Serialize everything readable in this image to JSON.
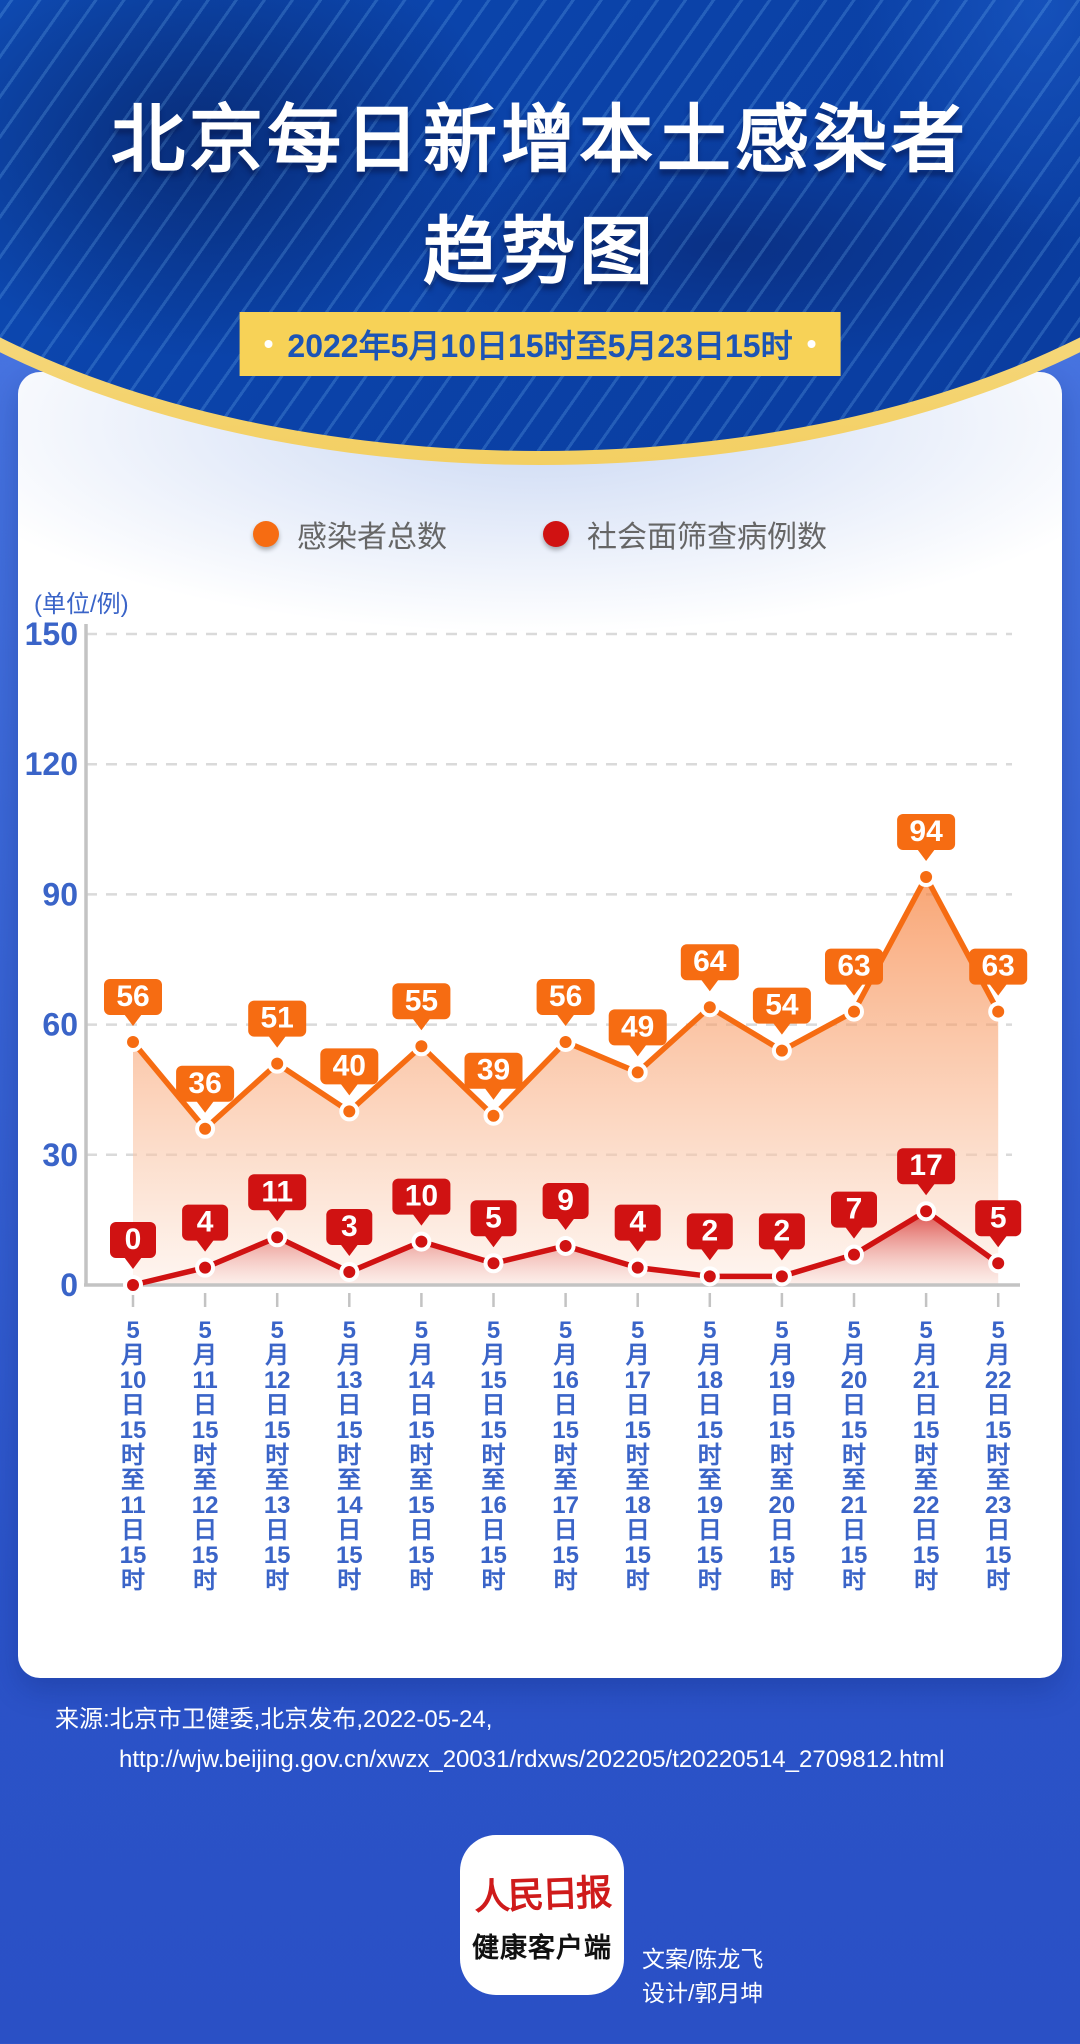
{
  "page": {
    "bg_top": "#4f7ce6",
    "bg_bottom": "#2a50c5",
    "header_blue": "#0b44ab",
    "rim_yellow": "#f3cf62"
  },
  "header": {
    "title_line1": "北京每日新增本土感染者",
    "title_line2": "趋势图",
    "badge": {
      "dot": "•",
      "text": "2022年5月10日15时至5月23日15时",
      "bg": "#f7d257",
      "text_color": "#1c54b6"
    }
  },
  "chart_data": {
    "type": "line",
    "title": "北京每日新增本土感染者趋势图",
    "unit_label": "(单位/例)",
    "categories": [
      "5月10日15时至11日15时",
      "5月11日15时至12日15时",
      "5月12日15时至13日15时",
      "5月13日15时至14日15时",
      "5月14日15时至15日15时",
      "5月15日15时至16日15时",
      "5月16日15时至17日15时",
      "5月17日15时至18日15时",
      "5月18日15时至19日15时",
      "5月19日15时至20日15时",
      "5月20日15时至21日15时",
      "5月21日15时至22日15时",
      "5月22日15时至23日15时"
    ],
    "series": [
      {
        "name": "感染者总数",
        "color": "#f66c12",
        "values": [
          56,
          36,
          51,
          40,
          55,
          39,
          56,
          49,
          64,
          54,
          63,
          94,
          63
        ]
      },
      {
        "name": "社会面筛查病例数",
        "color": "#d01212",
        "values": [
          0,
          4,
          11,
          3,
          10,
          5,
          9,
          4,
          2,
          2,
          7,
          17,
          5
        ]
      }
    ],
    "ylim": [
      0,
      150
    ],
    "yticks": [
      0,
      30,
      60,
      90,
      120,
      150
    ],
    "grid": true,
    "legend_position": "top",
    "axis_label_color": "#3a64c8"
  },
  "source": {
    "line1": "来源:北京市卫健委,北京发布,2022-05-24,",
    "line2": "http://wjw.beijing.gov.cn/xwzx_20031/rdxws/202205/t20220514_2709812.html"
  },
  "footer": {
    "logo_line1": "人民日报",
    "logo_line2": "健康客户端",
    "credit_line1": "文案/陈龙飞",
    "credit_line2": "设计/郭月坤"
  }
}
